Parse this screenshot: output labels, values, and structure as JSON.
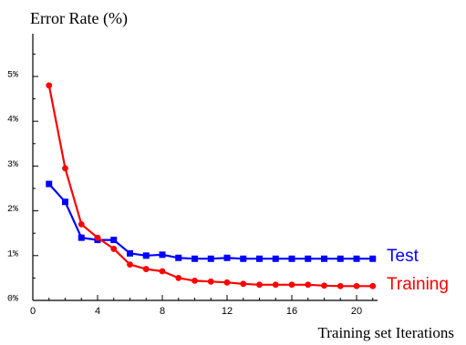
{
  "chart_data": {
    "type": "line",
    "ylabel": "Error Rate (%)",
    "xlabel": "Training set Iterations",
    "xlim": [
      0,
      21
    ],
    "ylim": [
      0,
      5.6
    ],
    "x_ticks": [
      0,
      4,
      8,
      12,
      16,
      20
    ],
    "y_ticks": [
      0,
      1,
      2,
      3,
      4,
      5
    ],
    "y_tick_labels": [
      "0%",
      "1%",
      "2%",
      "3%",
      "4%",
      "5%"
    ],
    "grid": false,
    "legend": "right, inline at line ends",
    "series": [
      {
        "name": "Test",
        "color": "#0000ff",
        "marker": "square",
        "x": [
          1,
          2,
          3,
          4,
          5,
          6,
          7,
          8,
          9,
          10,
          11,
          12,
          13,
          14,
          15,
          16,
          17,
          18,
          19,
          20,
          21
        ],
        "y": [
          2.6,
          2.2,
          1.4,
          1.35,
          1.35,
          1.05,
          1.0,
          1.02,
          0.95,
          0.93,
          0.93,
          0.95,
          0.93,
          0.93,
          0.93,
          0.93,
          0.93,
          0.93,
          0.93,
          0.93,
          0.93
        ]
      },
      {
        "name": "Training",
        "color": "#ff0000",
        "marker": "circle",
        "x": [
          1,
          2,
          3,
          4,
          5,
          6,
          7,
          8,
          9,
          10,
          11,
          12,
          13,
          14,
          15,
          16,
          17,
          18,
          19,
          20,
          21
        ],
        "y": [
          4.8,
          2.95,
          1.7,
          1.4,
          1.15,
          0.8,
          0.7,
          0.65,
          0.5,
          0.44,
          0.42,
          0.4,
          0.37,
          0.35,
          0.35,
          0.35,
          0.35,
          0.33,
          0.32,
          0.32,
          0.32
        ]
      }
    ]
  }
}
